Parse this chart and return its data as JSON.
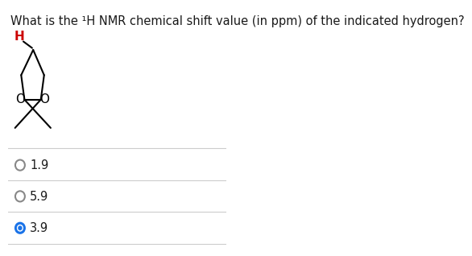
{
  "title": "What is the ¹H NMR chemical shift value (in ppm) of the indicated hydrogen?",
  "title_fontsize": 10.5,
  "title_color": "#1a1a1a",
  "background_color": "#ffffff",
  "options": [
    "1.9",
    "5.9",
    "3.9"
  ],
  "selected_index": 2,
  "option_circle_color_default": "#ffffff",
  "option_circle_edge_default": "#888888",
  "option_circle_color_selected": "#1a73e8",
  "option_circle_edge_selected": "#1a73e8",
  "option_text_color": "#1a1a1a",
  "option_fontsize": 10.5,
  "divider_color": "#cccccc",
  "molecule_H_color": "#cc0000",
  "molecule_line_color": "#000000",
  "molecule_O_color": "#000000"
}
